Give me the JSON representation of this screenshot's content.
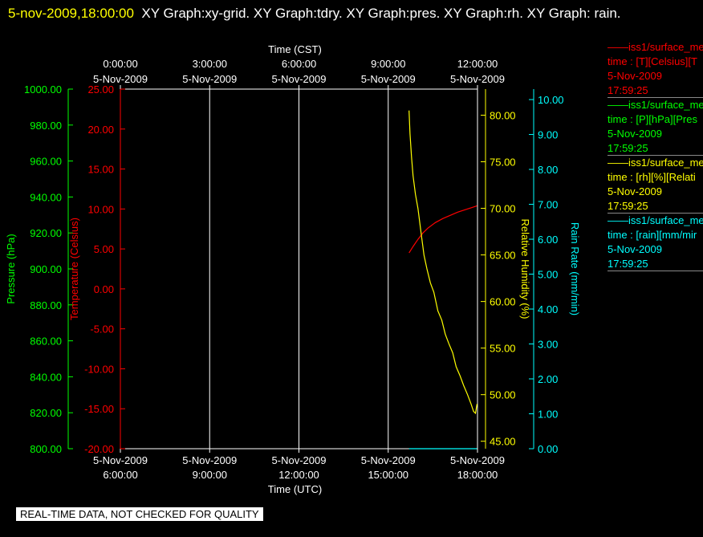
{
  "header": {
    "timestamp": "5-nov-2009,18:00:00",
    "graphs": "XY Graph:xy-grid.  XY Graph:tdry.  XY Graph:pres.  XY Graph:rh.  XY Graph: rain."
  },
  "footer": {
    "qc_note": "REAL-TIME DATA, NOT CHECKED FOR QUALITY"
  },
  "legend": [
    {
      "line1": "——iss1/surface_me",
      "line2": "time : [T][Celsius][T",
      "line3": "5-Nov-2009",
      "line4": "17:59:25",
      "color": "#ff0000"
    },
    {
      "line1": "——iss1/surface_me",
      "line2": "time : [P][hPa][Pres",
      "line3": "5-Nov-2009",
      "line4": "17:59:25",
      "color": "#00ff00"
    },
    {
      "line1": "——iss1/surface_me",
      "line2": "time : [rh][%][Relati",
      "line3": "5-Nov-2009",
      "line4": "17:59:25",
      "color": "#ffff00"
    },
    {
      "line1": "——iss1/surface_me",
      "line2": "time : [rain][mm/mir",
      "line3": "5-Nov-2009",
      "line4": "17:59:25",
      "color": "#00ffff"
    }
  ],
  "chart_data": {
    "type": "line",
    "grid": true,
    "x_top": {
      "label": "Time (CST)",
      "ticks": [
        {
          "time": "0:00:00",
          "date": "5-Nov-2009"
        },
        {
          "time": "3:00:00",
          "date": "5-Nov-2009"
        },
        {
          "time": "6:00:00",
          "date": "5-Nov-2009"
        },
        {
          "time": "9:00:00",
          "date": "5-Nov-2009"
        },
        {
          "time": "12:00:00",
          "date": "5-Nov-2009"
        }
      ]
    },
    "x_bottom": {
      "label": "Time (UTC)",
      "range": [
        "2009-11-05 06:00",
        "2009-11-05 18:00"
      ],
      "ticks": [
        {
          "time": "6:00:00",
          "date": "5-Nov-2009"
        },
        {
          "time": "9:00:00",
          "date": "5-Nov-2009"
        },
        {
          "time": "12:00:00",
          "date": "5-Nov-2009"
        },
        {
          "time": "15:00:00",
          "date": "5-Nov-2009"
        },
        {
          "time": "18:00:00",
          "date": "5-Nov-2009"
        }
      ]
    },
    "axes": {
      "pressure": {
        "label": "Pressure (hPa)",
        "range": [
          800,
          1000
        ],
        "ticks": [
          "1000.00",
          "980.00",
          "960.00",
          "940.00",
          "920.00",
          "900.00",
          "880.00",
          "860.00",
          "840.00",
          "820.00",
          "800.00"
        ],
        "color": "#00ff00"
      },
      "temperature": {
        "label": "Temperature (Celsius)",
        "range": [
          -20,
          25
        ],
        "ticks": [
          "25.00",
          "20.00",
          "15.00",
          "10.00",
          "5.00",
          "0.00",
          "-5.00",
          "-10.00",
          "-15.00",
          "-20.00"
        ],
        "color": "#ff0000"
      },
      "rh": {
        "label": "Relative Humidity (%)",
        "range": [
          44.2,
          82.8
        ],
        "ticks": [
          "80.00",
          "75.00",
          "70.00",
          "65.00",
          "60.00",
          "55.00",
          "50.00",
          "45.00"
        ],
        "color": "#ffff00"
      },
      "rain": {
        "label": "Rain Rate (mm/min)",
        "range": [
          0,
          10.3
        ],
        "ticks": [
          "10.00",
          "9.00",
          "8.00",
          "7.00",
          "6.00",
          "5.00",
          "4.00",
          "3.00",
          "2.00",
          "1.00",
          "0.00"
        ],
        "color": "#00ffff"
      }
    },
    "series": [
      {
        "name": "time : [T][Celsius][T",
        "axis": "temperature",
        "color": "#ff0000",
        "x": [
          "15:42",
          "15:50",
          "16:00",
          "16:10",
          "16:20",
          "16:35",
          "16:50",
          "17:05",
          "17:20",
          "17:35",
          "17:50",
          "17:59"
        ],
        "y": [
          4.5,
          5.3,
          6.2,
          7.0,
          7.6,
          8.3,
          8.8,
          9.2,
          9.6,
          9.9,
          10.2,
          10.4
        ]
      },
      {
        "name": "time : [rh][%][Relati",
        "axis": "rh",
        "color": "#ffff00",
        "x": [
          "15:42",
          "15:44",
          "15:47",
          "15:50",
          "15:55",
          "16:00",
          "16:06",
          "16:12",
          "16:18",
          "16:25",
          "16:32",
          "16:40",
          "16:48",
          "16:55",
          "17:02",
          "17:10",
          "17:17",
          "17:25",
          "17:32",
          "17:40",
          "17:47",
          "17:52",
          "17:56",
          "17:59"
        ],
        "y": [
          80.5,
          78.0,
          75.5,
          73.5,
          71.5,
          70.0,
          67.5,
          65.0,
          63.5,
          62.0,
          61.0,
          59.0,
          58.0,
          56.5,
          55.5,
          54.5,
          53.0,
          52.0,
          51.0,
          50.0,
          49.0,
          48.2,
          48.0,
          49.0
        ]
      },
      {
        "name": "time : [rain][mm/mir",
        "axis": "rain",
        "color": "#00ffff",
        "x": [
          "15:42",
          "17:59"
        ],
        "y": [
          0.0,
          0.0
        ]
      }
    ]
  }
}
